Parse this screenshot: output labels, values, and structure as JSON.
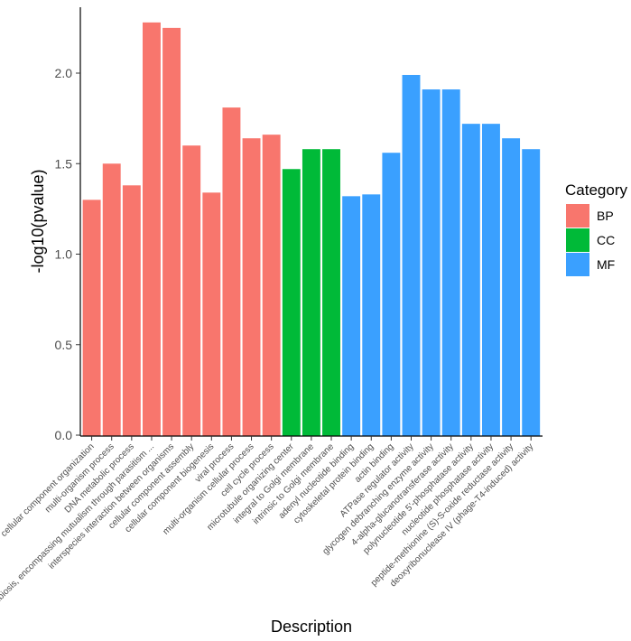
{
  "chart_data": {
    "type": "bar",
    "title": "",
    "xlabel": "Description",
    "ylabel": "-log10(pvalue)",
    "ylim": [
      0,
      2.35
    ],
    "yticks": [
      0.0,
      0.5,
      1.0,
      1.5,
      2.0
    ],
    "ytick_labels": [
      "0.0",
      "0.5",
      "1.0",
      "1.5",
      "2.0"
    ],
    "grid": false,
    "legend": {
      "title": "Category",
      "position": "right",
      "entries": [
        {
          "name": "BP",
          "color": "#F8766D"
        },
        {
          "name": "CC",
          "color": "#00BA38"
        },
        {
          "name": "MF",
          "color": "#3AA0FF"
        }
      ]
    },
    "categories": [
      "cellular component organization",
      "multi-organism process",
      "DNA metabolic process",
      "symbiosis, encompassing mutualism through parasitism ...",
      "interspecies interaction between organisms",
      "cellular component assembly",
      "cellular component biogenesis",
      "viral process",
      "multi-organism cellular process",
      "cell cycle process",
      "microtubule organizing center",
      "integral to Golgi membrane",
      "intrinsic to Golgi membrane",
      "adenyl nucleotide binding",
      "cytoskeletal protein binding",
      "actin binding",
      "ATPase regulator activity",
      "glycogen debranching enzyme activity",
      "4-alpha-glucanotransferase activity",
      "polynucleotide 5'-phosphatase activity",
      "nucleotide phosphatase activity",
      "peptide-methionine (S)-S-oxide reductase activity",
      "deoxyribonuclease IV (phage-T4-induced) activity"
    ],
    "values": [
      1.3,
      1.5,
      1.38,
      2.28,
      2.25,
      1.6,
      1.34,
      1.81,
      1.64,
      1.66,
      1.47,
      1.58,
      1.58,
      1.32,
      1.33,
      1.56,
      1.99,
      1.91,
      1.91,
      1.72,
      1.72,
      1.64,
      1.58
    ],
    "groups": [
      "BP",
      "BP",
      "BP",
      "BP",
      "BP",
      "BP",
      "BP",
      "BP",
      "BP",
      "BP",
      "CC",
      "CC",
      "CC",
      "MF",
      "MF",
      "MF",
      "MF",
      "MF",
      "MF",
      "MF",
      "MF",
      "MF",
      "MF"
    ]
  }
}
